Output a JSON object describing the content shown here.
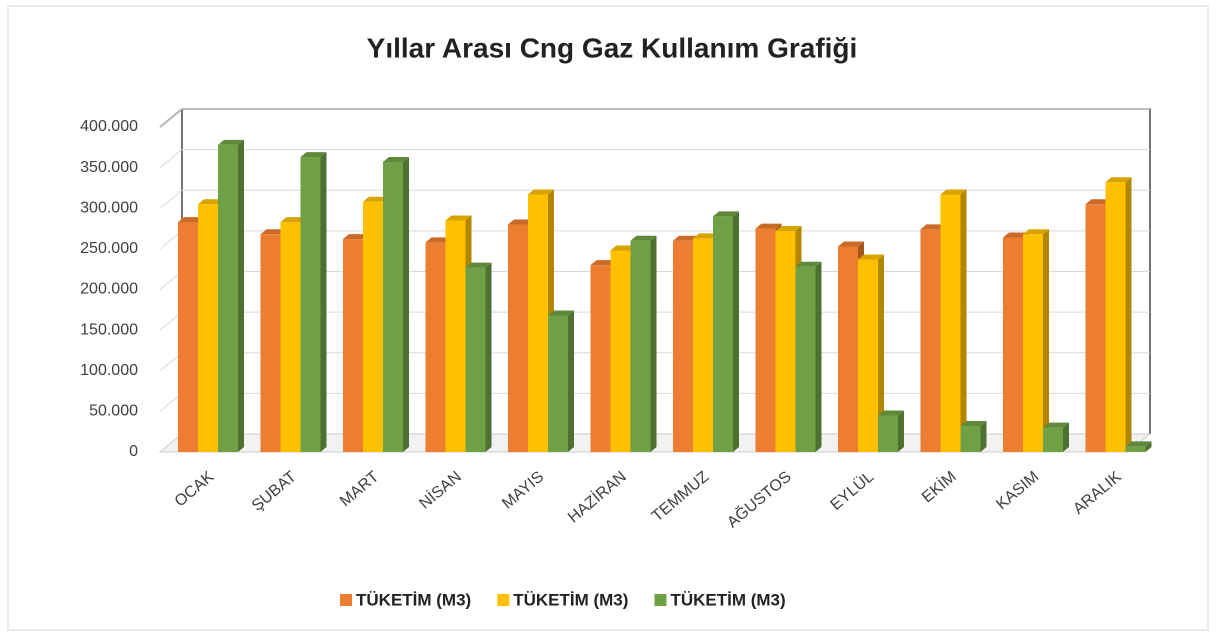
{
  "chart_data": {
    "type": "bar",
    "title": "Yıllar Arası Cng Gaz Kullanım Grafiği",
    "categories": [
      "OCAK",
      "ŞUBAT",
      "MART",
      "NİSAN",
      "MAYIS",
      "HAZİRAN",
      "TEMMUZ",
      "AĞUSTOS",
      "EYLÜL",
      "EKİM",
      "KASIM",
      "ARALIK"
    ],
    "series": [
      {
        "name": "TÜKETİM (M3)",
        "color": "#ed7d31",
        "values": [
          283000,
          268000,
          262000,
          258000,
          280000,
          230000,
          260000,
          275000,
          253000,
          274000,
          264000,
          305000
        ]
      },
      {
        "name": "TÜKETİM (M3)",
        "color": "#ffc000",
        "values": [
          305000,
          283000,
          308000,
          285000,
          317000,
          248000,
          263000,
          272000,
          237000,
          317000,
          268000,
          332000
        ]
      },
      {
        "name": "TÜKETİM (M3)",
        "color": "#70a046",
        "values": [
          378000,
          363000,
          357000,
          227000,
          168000,
          260000,
          290000,
          228000,
          45000,
          32000,
          30000,
          7000
        ]
      }
    ],
    "ylim": [
      0,
      400000
    ],
    "yticks": [
      0,
      {
        "value": 50000,
        "label": "50.000"
      },
      {
        "value": 100000,
        "label": "100.000"
      },
      {
        "value": 150000,
        "label": "150.000"
      },
      {
        "value": 200000,
        "label": "200.000"
      },
      {
        "value": 250000,
        "label": "250.000"
      },
      {
        "value": 300000,
        "label": "300.000"
      },
      {
        "value": 350000,
        "label": "350.000"
      },
      {
        "value": 400000,
        "label": "400.000"
      }
    ],
    "grid": true,
    "legend": "bottom"
  }
}
